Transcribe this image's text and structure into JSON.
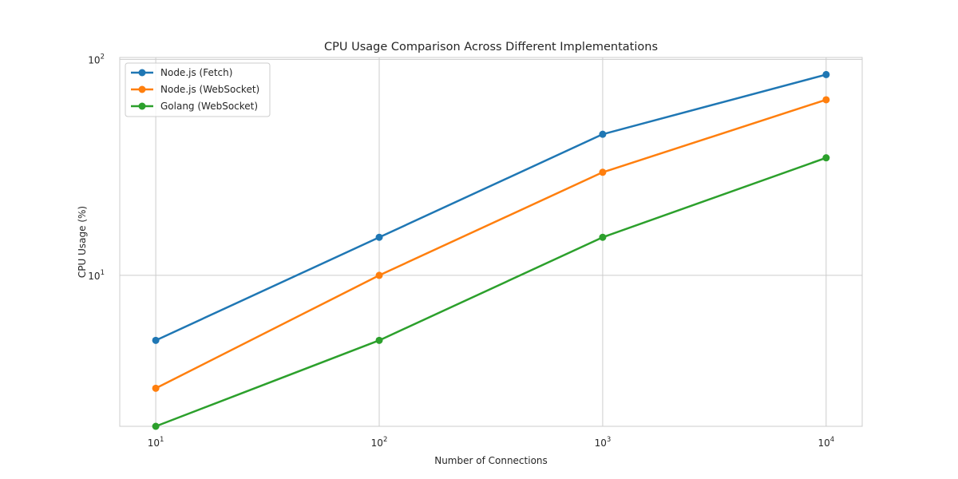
{
  "chart_data": {
    "type": "line",
    "title": "CPU Usage Comparison Across Different Implementations",
    "xlabel": "Number of Connections",
    "ylabel": "CPU Usage (%)",
    "x": [
      10,
      100,
      1000,
      10000
    ],
    "x_scale": "log",
    "y_scale": "log",
    "xlim": [
      6.9,
      14500
    ],
    "ylim": [
      2.0,
      102
    ],
    "x_ticks": [
      {
        "value": 10,
        "base": "10",
        "exp": "1"
      },
      {
        "value": 100,
        "base": "10",
        "exp": "2"
      },
      {
        "value": 1000,
        "base": "10",
        "exp": "3"
      },
      {
        "value": 10000,
        "base": "10",
        "exp": "4"
      }
    ],
    "y_ticks": [
      {
        "value": 10,
        "base": "10",
        "exp": "1"
      },
      {
        "value": 100,
        "base": "10",
        "exp": "2"
      }
    ],
    "grid": true,
    "legend_position": "top-left",
    "series": [
      {
        "name": "Node.js (Fetch)",
        "color": "#1f77b4",
        "values": [
          5,
          15,
          45,
          85
        ]
      },
      {
        "name": "Node.js (WebSocket)",
        "color": "#ff7f0e",
        "values": [
          3,
          10,
          30,
          65
        ]
      },
      {
        "name": "Golang (WebSocket)",
        "color": "#2ca02c",
        "values": [
          2,
          5,
          15,
          35
        ]
      }
    ]
  }
}
